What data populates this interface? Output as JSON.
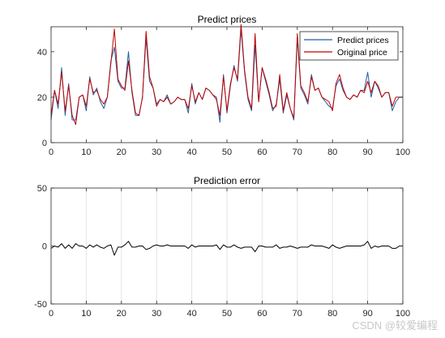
{
  "watermark": "CSDN @较爱编程",
  "chart_data": [
    {
      "type": "line",
      "title": "Predict prices",
      "xlabel": "",
      "ylabel": "",
      "xlim": [
        0,
        100
      ],
      "ylim": [
        0,
        51
      ],
      "xticks": [
        0,
        10,
        20,
        30,
        40,
        50,
        60,
        70,
        80,
        90,
        100
      ],
      "yticks": [
        0,
        20,
        40
      ],
      "grid": false,
      "legend": "top-right",
      "series": [
        {
          "name": "Predict prices",
          "color": "#1f5f9e",
          "values": [
            10,
            23,
            15,
            33,
            12,
            26,
            10,
            10,
            20,
            21,
            14,
            29,
            21,
            24,
            18,
            15,
            20,
            36,
            42,
            27,
            24,
            24,
            40,
            22,
            12,
            12,
            20,
            46,
            27,
            24,
            17,
            19,
            18,
            21,
            17,
            18,
            20,
            19,
            19,
            13,
            26,
            17,
            22,
            19,
            24,
            23,
            21,
            20,
            9,
            30,
            13,
            25,
            34,
            27,
            50,
            31,
            19,
            14,
            43,
            18,
            33,
            27,
            21,
            14,
            17,
            28,
            13,
            21,
            15,
            10,
            46,
            24,
            21,
            17,
            30,
            23,
            24,
            20,
            18,
            16,
            15,
            25,
            28,
            23,
            20,
            19,
            21,
            20,
            23,
            23,
            31,
            20,
            27,
            24,
            20,
            22,
            22,
            14,
            18,
            20,
            20
          ],
          "x": [
            0,
            1,
            2,
            3,
            4,
            5,
            6,
            7,
            8,
            9,
            10,
            11,
            12,
            13,
            14,
            15,
            16,
            17,
            18,
            19,
            20,
            21,
            22,
            23,
            24,
            25,
            26,
            27,
            28,
            29,
            30,
            31,
            32,
            33,
            34,
            35,
            36,
            37,
            38,
            39,
            40,
            41,
            42,
            43,
            44,
            45,
            46,
            47,
            48,
            49,
            50,
            51,
            52,
            53,
            54,
            55,
            56,
            57,
            58,
            59,
            60,
            61,
            62,
            63,
            64,
            65,
            66,
            67,
            68,
            69,
            70,
            71,
            72,
            73,
            74,
            75,
            76,
            77,
            78,
            79,
            80,
            81,
            82,
            83,
            84,
            85,
            86,
            87,
            88,
            89,
            90,
            91,
            92,
            93,
            94,
            95,
            96,
            97,
            98,
            99,
            100
          ]
        },
        {
          "name": "Original price",
          "color": "#c00000",
          "values": [
            12,
            23,
            17,
            31,
            14,
            25,
            12,
            8,
            20,
            21,
            16,
            28,
            22,
            23,
            19,
            17,
            20,
            35,
            50,
            28,
            25,
            23,
            36,
            23,
            13,
            12,
            20,
            49,
            29,
            24,
            16,
            19,
            18,
            20,
            17,
            18,
            20,
            19,
            19,
            15,
            25,
            18,
            22,
            19,
            24,
            23,
            21,
            19,
            12,
            29,
            14,
            26,
            33,
            28,
            52,
            32,
            20,
            15,
            48,
            18,
            33,
            28,
            22,
            15,
            16,
            30,
            14,
            22,
            15,
            11,
            48,
            25,
            22,
            18,
            29,
            23,
            24,
            20,
            19,
            18,
            14,
            26,
            30,
            24,
            20,
            19,
            21,
            20,
            23,
            22,
            27,
            22,
            27,
            25,
            20,
            22,
            22,
            16,
            20,
            20,
            20
          ],
          "x": [
            0,
            1,
            2,
            3,
            4,
            5,
            6,
            7,
            8,
            9,
            10,
            11,
            12,
            13,
            14,
            15,
            16,
            17,
            18,
            19,
            20,
            21,
            22,
            23,
            24,
            25,
            26,
            27,
            28,
            29,
            30,
            31,
            32,
            33,
            34,
            35,
            36,
            37,
            38,
            39,
            40,
            41,
            42,
            43,
            44,
            45,
            46,
            47,
            48,
            49,
            50,
            51,
            52,
            53,
            54,
            55,
            56,
            57,
            58,
            59,
            60,
            61,
            62,
            63,
            64,
            65,
            66,
            67,
            68,
            69,
            70,
            71,
            72,
            73,
            74,
            75,
            76,
            77,
            78,
            79,
            80,
            81,
            82,
            83,
            84,
            85,
            86,
            87,
            88,
            89,
            90,
            91,
            92,
            93,
            94,
            95,
            96,
            97,
            98,
            99,
            100
          ]
        }
      ]
    },
    {
      "type": "line",
      "title": "Prediction error",
      "xlabel": "",
      "ylabel": "",
      "xlim": [
        0,
        100
      ],
      "ylim": [
        -50,
        50
      ],
      "xticks": [
        0,
        10,
        20,
        30,
        40,
        50,
        60,
        70,
        80,
        90,
        100
      ],
      "yticks": [
        -50,
        0,
        50
      ],
      "grid": true,
      "series": [
        {
          "color": "#000000",
          "values": [
            -2,
            0,
            -1,
            2,
            -2,
            1,
            -2,
            2,
            0,
            0,
            -2,
            1,
            -1,
            1,
            -1,
            -2,
            0,
            1,
            -8,
            -1,
            -1,
            1,
            4,
            -1,
            -1,
            0,
            0,
            -3,
            -2,
            0,
            1,
            0,
            0,
            1,
            0,
            0,
            0,
            0,
            0,
            -2,
            1,
            -1,
            0,
            0,
            0,
            0,
            0,
            1,
            -3,
            1,
            -1,
            -1,
            1,
            -1,
            -2,
            -1,
            -1,
            -1,
            -5,
            0,
            0,
            -1,
            -1,
            -1,
            1,
            -2,
            -1,
            -1,
            0,
            -1,
            -2,
            -1,
            -1,
            -1,
            1,
            0,
            0,
            0,
            -1,
            -2,
            1,
            -1,
            -2,
            -1,
            0,
            0,
            0,
            0,
            0,
            1,
            4,
            -2,
            0,
            -1,
            0,
            0,
            0,
            -2,
            -2,
            0,
            0
          ],
          "x": [
            0,
            1,
            2,
            3,
            4,
            5,
            6,
            7,
            8,
            9,
            10,
            11,
            12,
            13,
            14,
            15,
            16,
            17,
            18,
            19,
            20,
            21,
            22,
            23,
            24,
            25,
            26,
            27,
            28,
            29,
            30,
            31,
            32,
            33,
            34,
            35,
            36,
            37,
            38,
            39,
            40,
            41,
            42,
            43,
            44,
            45,
            46,
            47,
            48,
            49,
            50,
            51,
            52,
            53,
            54,
            55,
            56,
            57,
            58,
            59,
            60,
            61,
            62,
            63,
            64,
            65,
            66,
            67,
            68,
            69,
            70,
            71,
            72,
            73,
            74,
            75,
            76,
            77,
            78,
            79,
            80,
            81,
            82,
            83,
            84,
            85,
            86,
            87,
            88,
            89,
            90,
            91,
            92,
            93,
            94,
            95,
            96,
            97,
            98,
            99,
            100
          ]
        }
      ]
    }
  ]
}
